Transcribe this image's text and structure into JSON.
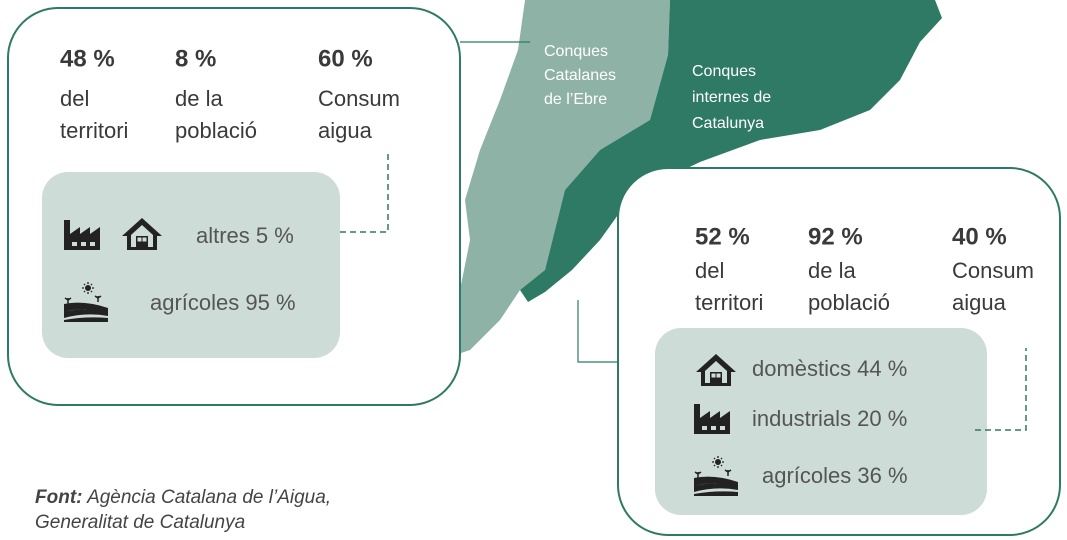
{
  "map": {
    "regions": [
      {
        "lines": [
          "Conques",
          "Catalanes",
          "de l’Ebre"
        ]
      },
      {
        "lines": [
          "Conques",
          "internes de",
          "Catalunya"
        ]
      }
    ]
  },
  "left_panel": {
    "stats": [
      {
        "value": "48 %",
        "label": [
          "del",
          "territori"
        ]
      },
      {
        "value": "8 %",
        "label": [
          "de la",
          "població"
        ]
      },
      {
        "value": "60 %",
        "label": [
          "Consum",
          "aigua"
        ]
      }
    ],
    "uses": [
      "altres 5 %",
      "agrícoles 95 %"
    ]
  },
  "right_panel": {
    "stats": [
      {
        "value": "52 %",
        "label": [
          "del",
          "territori"
        ]
      },
      {
        "value": "92 %",
        "label": [
          "de la",
          "població"
        ]
      },
      {
        "value": "40 %",
        "label": [
          "Consum",
          "aigua"
        ]
      }
    ],
    "uses": [
      "domèstics 44 %",
      "industrials 20 %",
      "agrícoles 36 %"
    ]
  },
  "source": {
    "label": "Font:",
    "text": [
      "Agència Catalana de l’Aigua,",
      "Generalitat de Catalunya"
    ]
  }
}
